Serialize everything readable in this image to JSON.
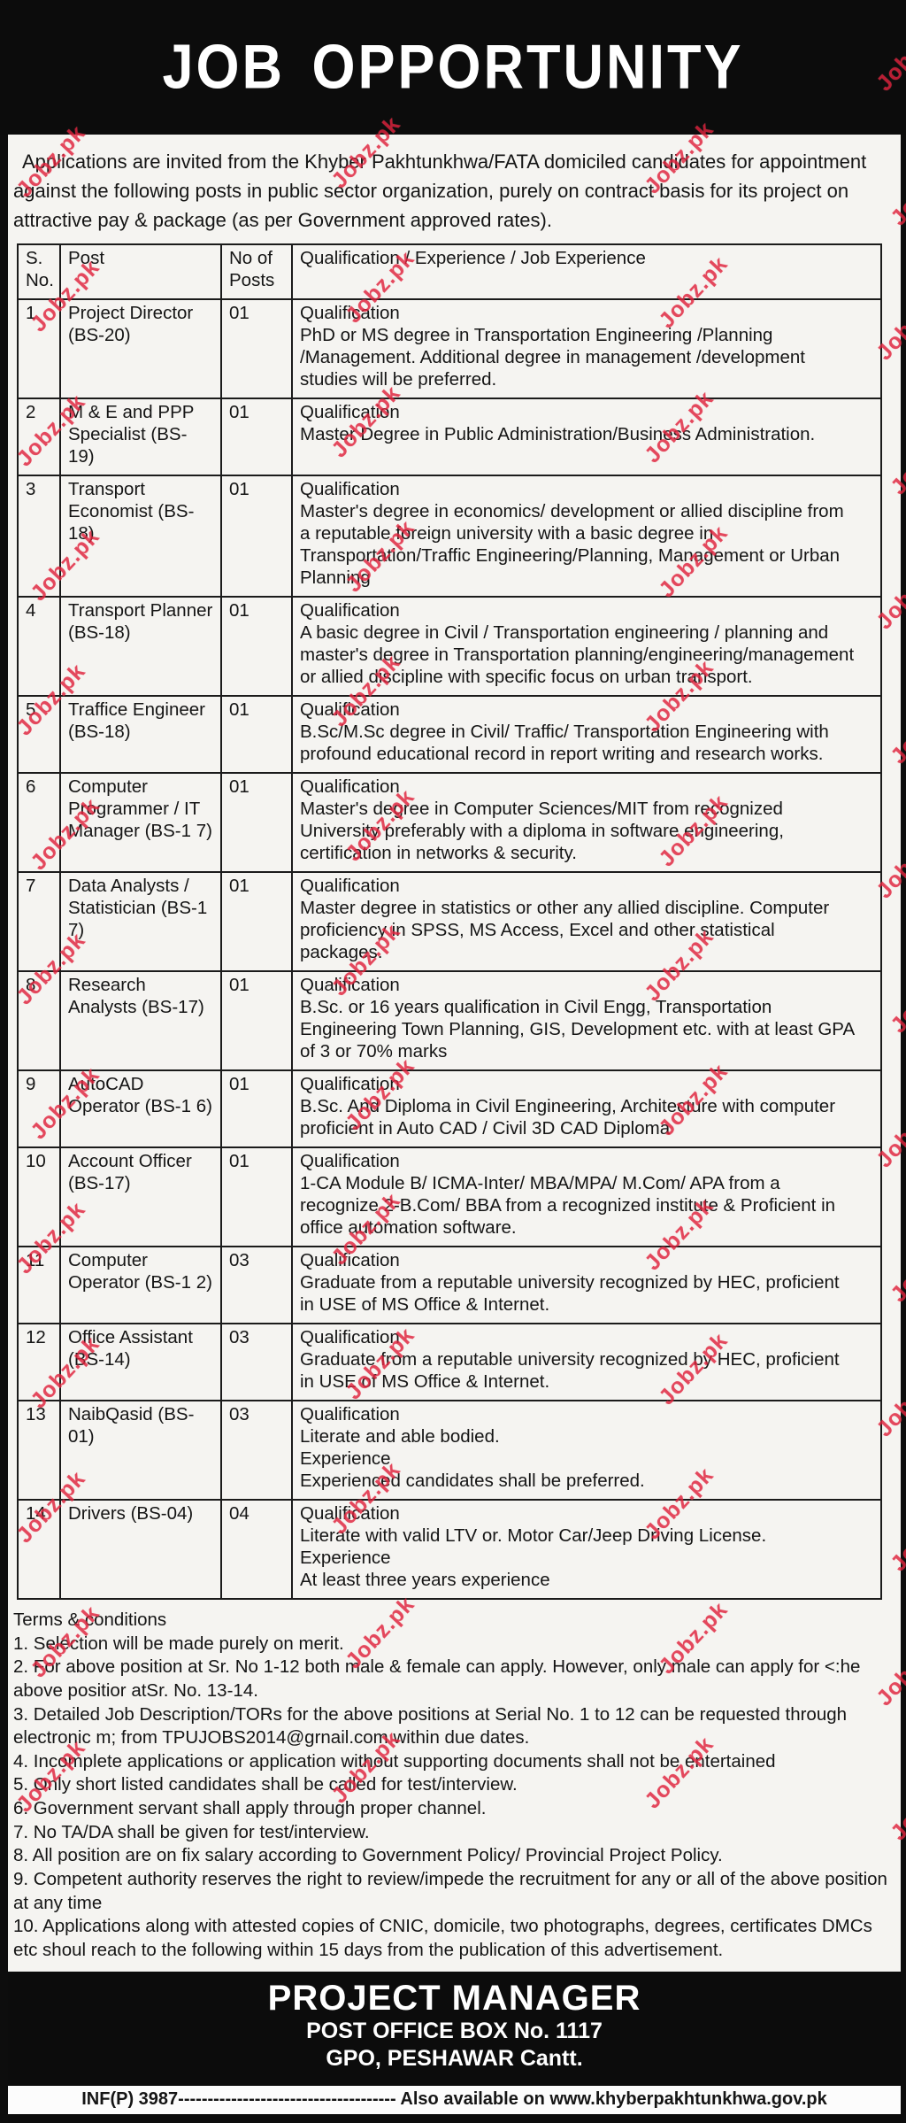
{
  "title": "JOB OPPORTUNITY",
  "intro": "Applications are invited from the Khyber Pakhtunkhwa/FATA domiciled candidates for appointment against the following posts in public sector organization, purely on contract basis for its project on attractive pay & package (as per Government approved rates).",
  "table": {
    "headers": [
      "S. No.",
      "Post",
      "No of Posts",
      "Qualification / Experience / Job Experience"
    ],
    "rows": [
      {
        "sno": "1",
        "post": "Project Director (BS-20)",
        "posts": "01",
        "details": [
          "Qualification",
          "PhD or MS degree in Transportation Engineering /Planning /Management. Additional degree in management /development studies will be preferred."
        ]
      },
      {
        "sno": "2",
        "post": "M & E and PPP Specialist (BS-19)",
        "posts": "01",
        "details": [
          "Qualification",
          "Master Degree in Public Administration/Business Administration."
        ]
      },
      {
        "sno": "3",
        "post": "Transport Economist (BS-18)",
        "posts": "01",
        "details": [
          "Qualification",
          "Master's degree in economics/ development or allied discipline from a reputable foreign university with a basic degree in Transportation/Traffic Engineering/Planning, Management or Urban Planning"
        ]
      },
      {
        "sno": "4",
        "post": "Transport Planner (BS-18)",
        "posts": "01",
        "details": [
          "Qualification",
          "A basic degree in Civil / Transportation engineering / planning and master's degree in Transportation planning/engineering/management or allied discipline with specific focus on urban transport."
        ]
      },
      {
        "sno": "5",
        "post": "Traffice Engineer (BS-18)",
        "posts": "01",
        "details": [
          "Qualification",
          "B.Sc/M.Sc degree in Civil/ Traffic/ Transportation Engineering with profound educational record in report writing and research works."
        ]
      },
      {
        "sno": "6",
        "post": "Computer Programmer / IT Manager (BS-1 7)",
        "posts": "01",
        "details": [
          "Qualification",
          "Master's degree in Computer Sciences/MIT from recognized University preferably with a diploma in software engineering, certification in networks & security."
        ]
      },
      {
        "sno": "7",
        "post": "Data Analysts / Statistician (BS-1 7)",
        "posts": "01",
        "details": [
          "Qualification",
          "Master degree in statistics or other any allied discipline. Computer proficiency in SPSS, MS Access, Excel and other statistical packages."
        ]
      },
      {
        "sno": "8",
        "post": "Research Analysts (BS-17)",
        "posts": "01",
        "details": [
          "Qualification",
          "B.Sc. or 16 years qualification in Civil Engg, Transportation Engineering Town Planning, GIS, Development etc. with at least GPA of 3 or 70% marks"
        ]
      },
      {
        "sno": "9",
        "post": "AutoCAD Operator (BS-1 6)",
        "posts": "01",
        "details": [
          "Qualification",
          "B.Sc. And Diploma in Civil Engineering, Architecture with computer proficient in Auto CAD / Civil 3D CAD Diploma"
        ]
      },
      {
        "sno": "10",
        "post": "Account Officer (BS-17)",
        "posts": "01",
        "details": [
          "Qualification",
          "1-CA Module B/ ICMA-Inter/ MBA/MPA/ M.Com/ APA from a recognize 2-B.Com/ BBA from a recognized institute & Proficient in office automation software."
        ]
      },
      {
        "sno": "11",
        "post": "Computer Operator (BS-1 2)",
        "posts": "03",
        "details": [
          "Qualification",
          "Graduate from a reputable university recognized by HEC, proficient in USE of MS Office & Internet."
        ]
      },
      {
        "sno": "12",
        "post": "Office Assistant (BS-14)",
        "posts": "03",
        "details": [
          "Qualification",
          "Graduate from a reputable university recognized by HEC, proficient in USE of MS Office & Internet."
        ]
      },
      {
        "sno": "13",
        "post": "NaibQasid (BS-01)",
        "posts": "03",
        "details": [
          "Qualification",
          "Literate and able bodied.",
          "Experience",
          "Experienced candidates shall be preferred."
        ]
      },
      {
        "sno": "14",
        "post": "Drivers (BS-04)",
        "posts": "04",
        "details": [
          "Qualification",
          "Literate with valid LTV or. Motor Car/Jeep Driving License.",
          "Experience",
          "At least three years experience"
        ]
      }
    ]
  },
  "terms": {
    "heading": "Terms & conditions",
    "items": [
      "1. Selection will be made purely on merit.",
      "2. For above position at Sr. No 1-12 both male & female can apply. However, only male can apply for <:he above positior atSr. No. 13-14.",
      "3. Detailed Job Description/TORs for the above positions at Serial No. 1 to 12 can be requested through electronic m; from TPUJOBS2014@grnail.com within due dates.",
      "4. Incomplete applications or application without supporting documents shall not be entertained",
      "5. Only short listed candidates shall be called for test/interview.",
      "6. Government servant shall apply through proper channel.",
      "7. No TA/DA shall be given for test/interview.",
      "8. All position are on fix salary according to Government Policy/ Provincial Project Policy.",
      "9. Competent authority reserves the right to review/impede the recruitment for any or all of the above position at any time",
      "10. Applications along with attested copies of CNIC, domicile, two photographs, degrees, certificates DMCs etc shoul reach to the following within 15 days from the publication of this advertisement."
    ]
  },
  "footer": {
    "line1": "PROJECT MANAGER",
    "line2": "POST OFFICE BOX No. 1117",
    "line3": "GPO, PESHAWAR Cantt."
  },
  "bottom": {
    "left": "INF(P) 3987",
    "dashes": "-------------------------------------",
    "right": " Also available on www.khyberpakhtunkhwa.gov.pk"
  },
  "watermark": {
    "text": "Jobz.pk",
    "color": "#e0233d"
  }
}
